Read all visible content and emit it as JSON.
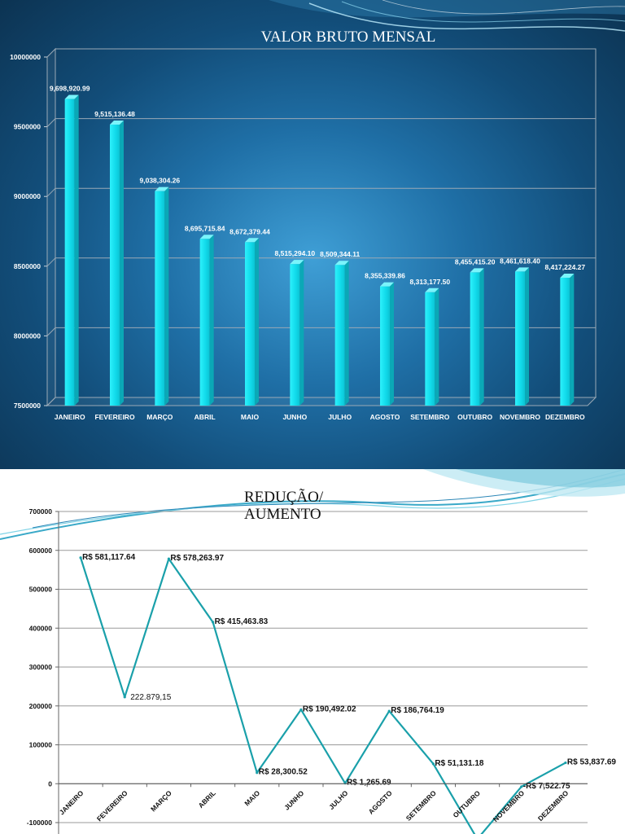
{
  "colors": {
    "bar_front": "#12dcec",
    "bar_side": "#0aa8b6",
    "bar_top": "#7af4fb",
    "line": "#1aa0aa"
  },
  "chart_data": [
    {
      "type": "bar",
      "title": "VALOR BRUTO MENSAL",
      "categories": [
        "JANEIRO",
        "FEVEREIRO",
        "MARÇO",
        "ABRIL",
        "MAIO",
        "JUNHO",
        "JULHO",
        "AGOSTO",
        "SETEMBRO",
        "OUTUBRO",
        "NOVEMBRO",
        "DEZEMBRO"
      ],
      "values": [
        9698920.99,
        9515136.48,
        9038304.26,
        8695715.84,
        8672379.44,
        8515294.1,
        8509344.11,
        8355339.86,
        8313177.5,
        8455415.2,
        8461618.4,
        8417224.27
      ],
      "data_labels": [
        "9,698,920.99",
        "9,515,136.48",
        "9,038,304.26",
        "8,695,715.84",
        "8,672,379.44",
        "8,515,294.10",
        "8,509,344.11",
        "8,355,339.86",
        "8,313,177.50",
        "8,455,415.20",
        "8,461,618.40",
        "8,417,224.27"
      ],
      "yticks": [
        "10000000",
        "9500000",
        "9000000",
        "8500000",
        "8000000",
        "7500000"
      ],
      "ylim": [
        7500000,
        10000000
      ],
      "grid": true,
      "legend": false
    },
    {
      "type": "line",
      "title": "REDUÇÃO/ AUMENTO",
      "title_lines": [
        "REDUÇÃO/",
        "AUMENTO"
      ],
      "categories": [
        "JANEIRO",
        "FEVEREIRO",
        "MARÇO",
        "ABRIL",
        "MAIO",
        "JUNHO",
        "JULHO",
        "AGOSTO",
        "SETEMBRO",
        "OUTUBRO",
        "NOVEMBRO",
        "DEZEMBRO"
      ],
      "values": [
        581117.64,
        222879.15,
        578263.97,
        415463.83,
        28300.52,
        190492.02,
        1265.69,
        186764.19,
        51131.18,
        -142237.3,
        -7522.75,
        53837.69
      ],
      "data_labels": [
        "R$ 581,117.64",
        "222.879,15",
        "R$ 578,263.97",
        "R$ 415,463.83",
        "R$ 28,300.52",
        "R$ 190,492.02",
        "R$ 1,265.69",
        "R$ 186,764.19",
        "R$ 51,131.18",
        "",
        "-R$ 7,522.75",
        "R$ 53,837.69"
      ],
      "yticks": [
        "700000",
        "600000",
        "500000",
        "400000",
        "300000",
        "200000",
        "100000",
        "0",
        "-100000"
      ],
      "ylim": [
        -100000,
        700000
      ],
      "grid": true,
      "legend": false
    }
  ]
}
